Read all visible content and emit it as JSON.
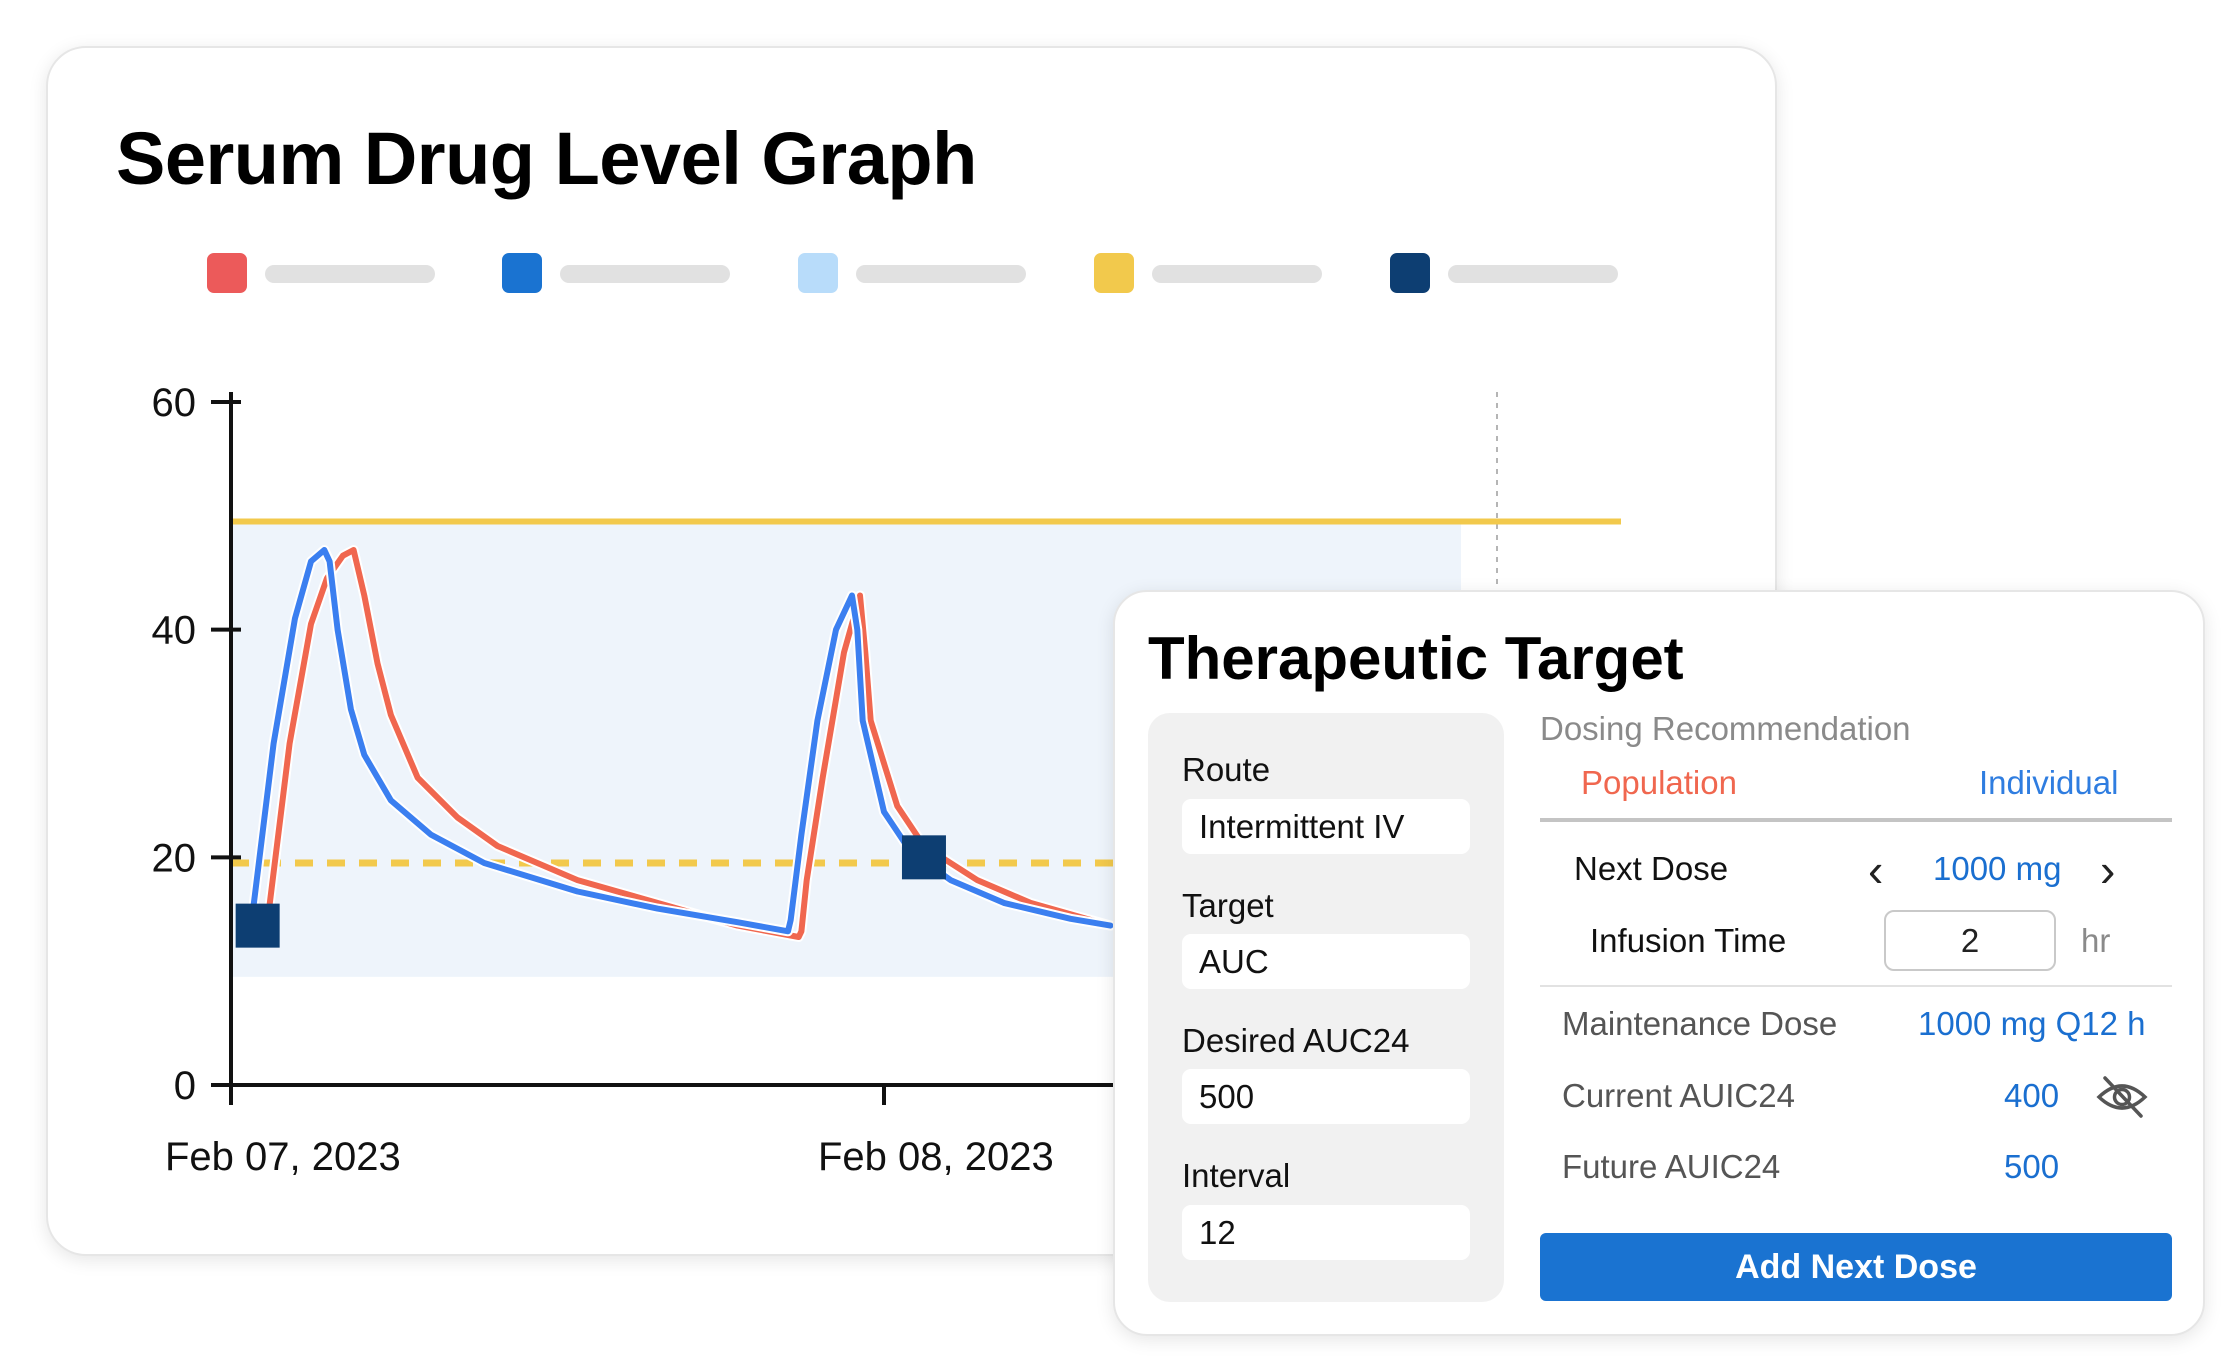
{
  "graph": {
    "title": "Serum Drug Level Graph",
    "legend": [
      {
        "color": "#ec5a5a",
        "label": ""
      },
      {
        "color": "#1a73d1",
        "label": ""
      },
      {
        "color": "#b8dcfa",
        "label": ""
      },
      {
        "color": "#f2c94c",
        "label": ""
      },
      {
        "color": "#0d3e72",
        "label": ""
      }
    ]
  },
  "chart_data": {
    "type": "line",
    "title": "Serum Drug Level Graph",
    "xlabel": "",
    "ylabel": "",
    "ylim": [
      0,
      60
    ],
    "y_ticks": [
      0,
      20,
      40,
      60
    ],
    "x_ticks": [
      "Feb 07, 2023",
      "Feb 08, 2023"
    ],
    "x_axis_unit": "hours since Feb 07, 2023 00:00",
    "xlim": [
      0,
      47.5
    ],
    "grid": false,
    "therapeutic_range": {
      "low": 9.5,
      "high": 49.5,
      "color": "#eef4fb"
    },
    "reference_lines": [
      {
        "name": "upper",
        "value": 49.5,
        "style": "solid",
        "color": "#f2c94c"
      },
      {
        "name": "lower",
        "value": 19.5,
        "style": "dashed",
        "color": "#f2c94c"
      }
    ],
    "current_time_marker": 47.5,
    "series": [
      {
        "name": "",
        "color": "#f0674f",
        "x": [
          1.3,
          2.2,
          3.0,
          3.6,
          4.2,
          4.6,
          5.0,
          5.5,
          6.0,
          7.0,
          8.5,
          10.0,
          13.0,
          16.0,
          19.0,
          21.3,
          21.4,
          21.6,
          22.2,
          23.0,
          23.6,
          23.8,
          24.0,
          25.0,
          26.0,
          28.0,
          30.0,
          33.0
        ],
        "y": [
          13,
          30,
          40.5,
          44.5,
          46.5,
          47,
          43,
          37,
          32.5,
          27,
          23.5,
          21,
          18,
          16,
          14,
          13,
          13.5,
          18,
          27,
          38,
          43,
          38,
          32,
          24.5,
          21,
          18,
          16,
          14
        ]
      },
      {
        "name": "",
        "color": "#3b7ff0",
        "x": [
          0.7,
          1.6,
          2.4,
          3.0,
          3.5,
          3.7,
          4.0,
          4.5,
          5.0,
          6.0,
          7.5,
          9.5,
          13.0,
          16.0,
          19.0,
          20.9,
          21.0,
          21.4,
          22.0,
          22.7,
          23.3,
          23.5,
          23.7,
          24.5,
          25.5,
          27.0,
          29.0,
          31.5,
          33.0
        ],
        "y": [
          13,
          30,
          41,
          46,
          47,
          46,
          40,
          33,
          29,
          25,
          22,
          19.5,
          17,
          15.5,
          14.3,
          13.5,
          14.5,
          22,
          32,
          40,
          43,
          40,
          32,
          24,
          20.5,
          18,
          16,
          14.6,
          14
        ]
      }
    ],
    "markers": [
      {
        "x": 1.0,
        "y": 14,
        "color": "#0d3e72"
      },
      {
        "x": 26.0,
        "y": 20,
        "color": "#0d3e72"
      }
    ]
  },
  "target": {
    "title": "Therapeutic Target",
    "route": {
      "label": "Route",
      "value": "Intermittent IV"
    },
    "target": {
      "label": "Target",
      "value": "AUC"
    },
    "desired": {
      "label": "Desired AUC24",
      "value": "500"
    },
    "interval": {
      "label": "Interval",
      "value": "12"
    },
    "dosing": {
      "heading": "Dosing Recommendation",
      "tab_population": "Population",
      "tab_individual": "Individual",
      "next_dose_label": "Next Dose",
      "next_dose_value": "1000 mg",
      "infusion_label": "Infusion Time",
      "infusion_value": "2",
      "infusion_unit": "hr",
      "maintenance_label": "Maintenance Dose",
      "maintenance_value": "1000 mg Q12 h",
      "current_label": "Current AUIC24",
      "current_value": "400",
      "future_label": "Future AUIC24",
      "future_value": "500",
      "add_button": "Add Next Dose"
    },
    "icons": {
      "prev": "chevron-left-icon",
      "next": "chevron-right-icon",
      "hide": "eye-off-icon"
    }
  }
}
